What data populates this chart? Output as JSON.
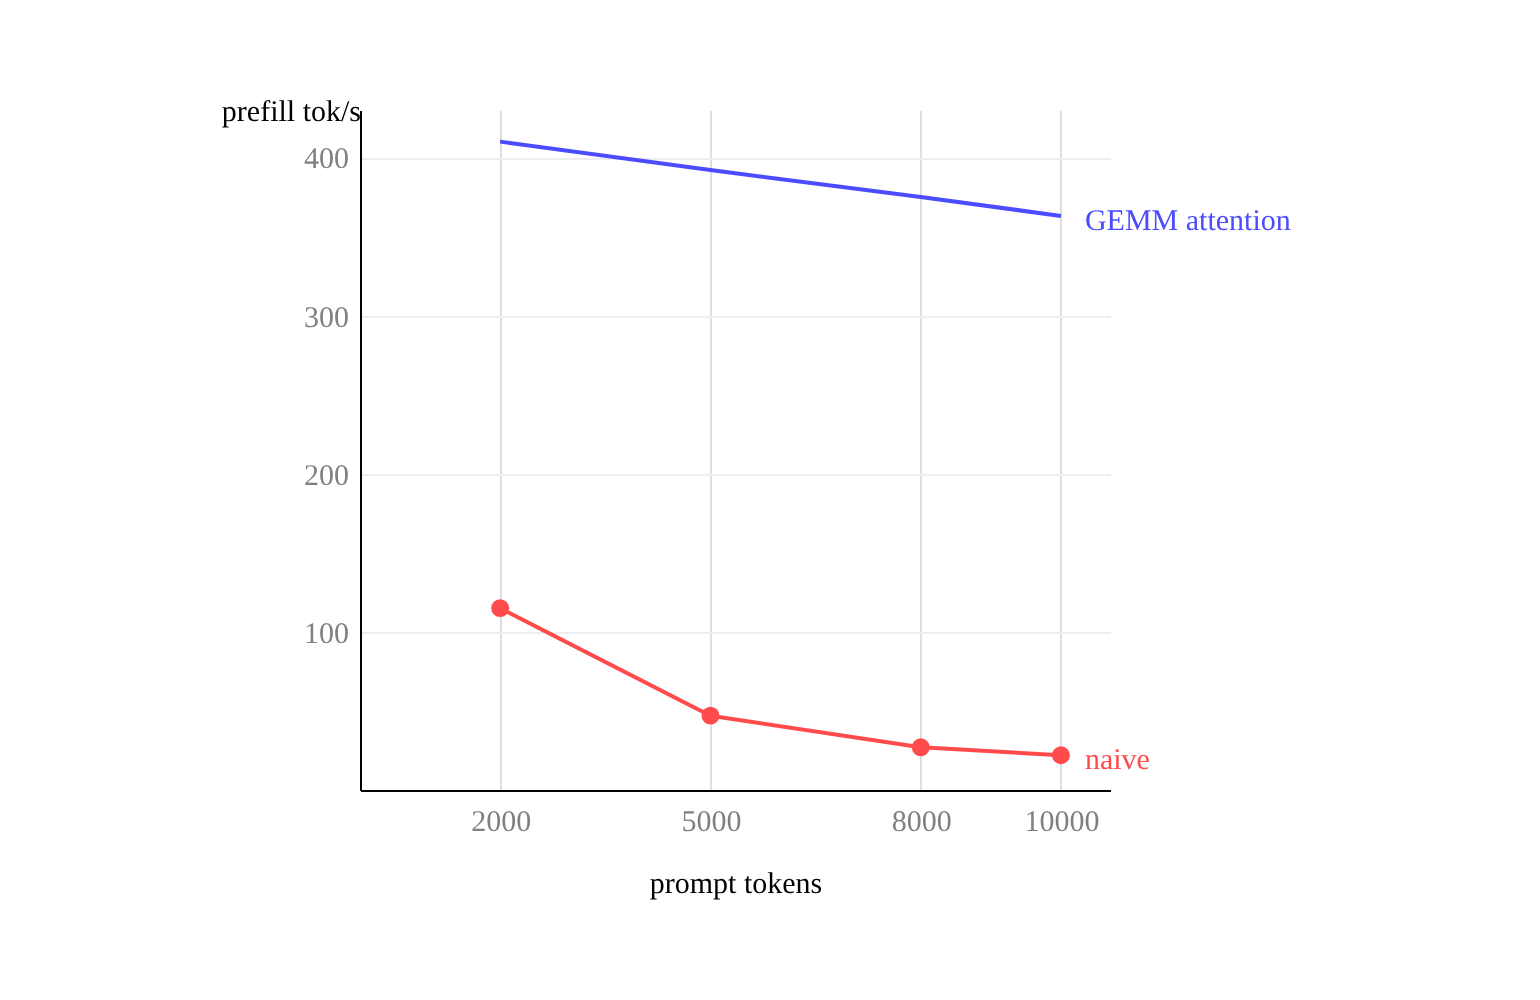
{
  "chart_data": {
    "type": "line",
    "xlabel": "prompt tokens",
    "ylabel": "prefill tok/s",
    "xlim": [
      0,
      10700
    ],
    "ylim": [
      0,
      430
    ],
    "xticks": [
      2000,
      5000,
      8000,
      10000
    ],
    "yticks": [
      100,
      200,
      300,
      400
    ],
    "grid": true,
    "legend": false,
    "series": [
      {
        "name": "GEMM attention",
        "color": "#4b4bff",
        "x": [
          2000,
          5000,
          8000,
          10000
        ],
        "values": [
          410,
          392,
          375,
          363
        ],
        "marker": "none"
      },
      {
        "name": "naive",
        "color": "#ff4b4b",
        "x": [
          2000,
          5000,
          8000,
          10000
        ],
        "values": [
          115,
          47,
          27,
          22
        ],
        "marker": "circle"
      }
    ]
  }
}
